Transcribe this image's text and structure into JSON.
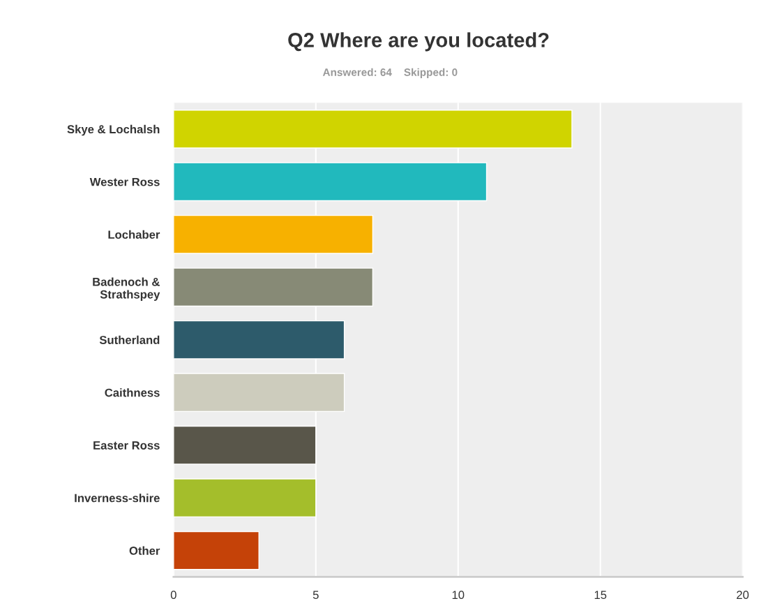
{
  "chart_data": {
    "type": "bar",
    "orientation": "horizontal",
    "title": "Q2 Where are you located?",
    "subtitle": "Answered: 64    Skipped: 0",
    "categories": [
      "Skye & Lochalsh",
      "Wester Ross",
      "Lochaber",
      "Badenoch &\nStrathspey",
      "Sutherland",
      "Caithness",
      "Easter Ross",
      "Inverness-shire",
      "Other"
    ],
    "values": [
      14,
      11,
      7,
      7,
      6,
      6,
      5,
      5,
      3
    ],
    "colors": [
      "#d0d400",
      "#21b9bd",
      "#f7b100",
      "#878a76",
      "#2d5b6b",
      "#cdccbd",
      "#59564a",
      "#a4be2b",
      "#c54208"
    ],
    "xlim": [
      0,
      20
    ],
    "xticks": [
      0,
      5,
      10,
      15,
      20
    ],
    "grid": "x"
  }
}
